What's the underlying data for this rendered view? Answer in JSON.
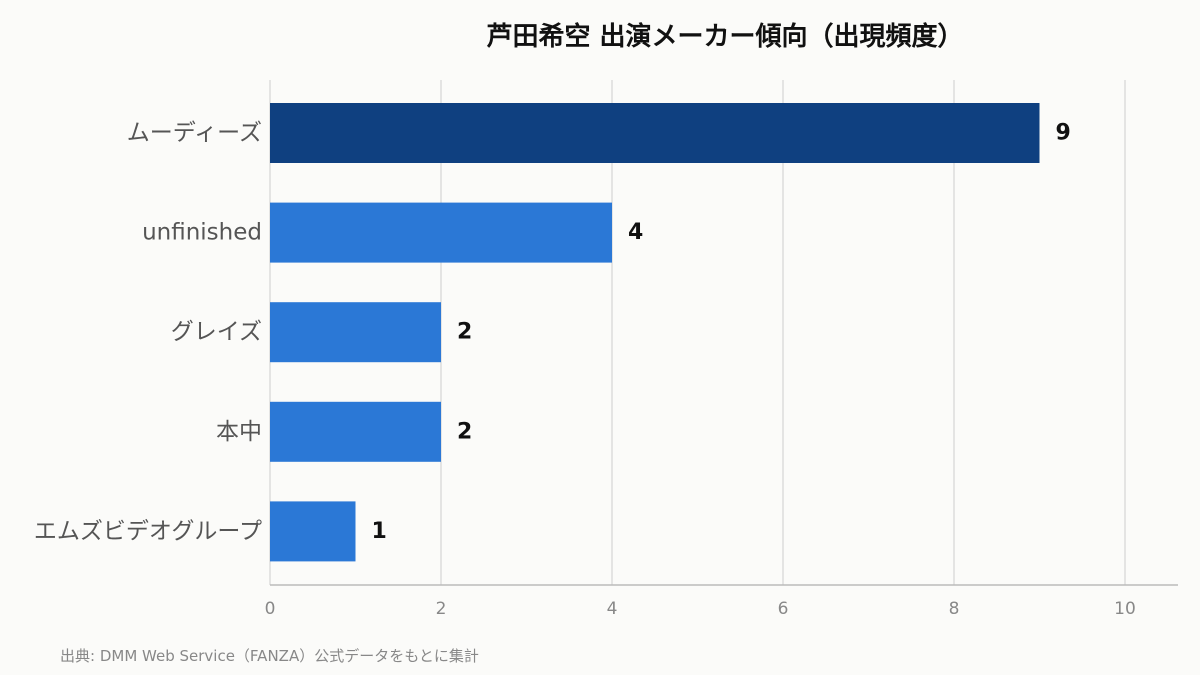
{
  "chart_data": {
    "type": "bar",
    "orientation": "horizontal",
    "title": "芦田希空 出演メーカー傾向（出現頻度）",
    "categories": [
      "ムーディーズ",
      "unfinished",
      "グレイズ",
      "本中",
      "エムズビデオグループ"
    ],
    "values": [
      9,
      4,
      2,
      2,
      1
    ],
    "xlim": [
      0,
      10
    ],
    "xticks": [
      0,
      2,
      4,
      6,
      8,
      10
    ],
    "grid": true,
    "colors": {
      "highlight": "#0f4080",
      "default": "#2b78d6"
    }
  },
  "source": "出典: DMM Web Service（FANZA）公式データをもとに集計"
}
